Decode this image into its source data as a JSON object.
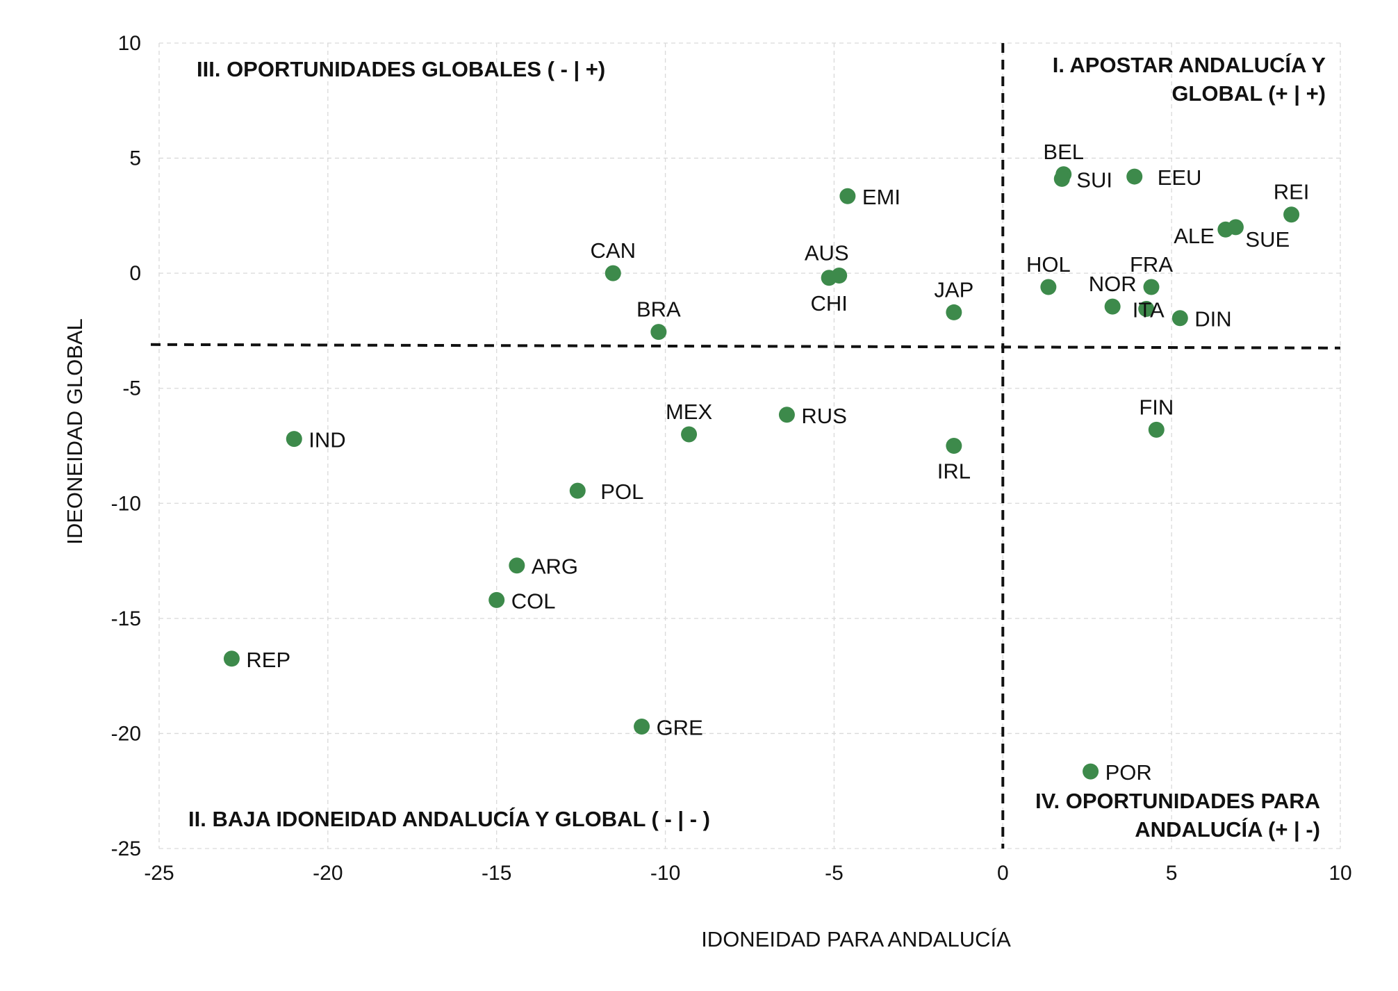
{
  "chart_data": {
    "type": "scatter",
    "xlabel": "IDONEIDAD PARA ANDALUCÍA",
    "ylabel": "IDEONEIDAD GLOBAL",
    "xlim": [
      -25,
      10
    ],
    "ylim": [
      -25,
      10
    ],
    "x_ticks": [
      "-25",
      "-20",
      "-15",
      "-10",
      "-5",
      "0",
      "5",
      "10"
    ],
    "y_ticks": [
      "10",
      "5",
      "0",
      "-5",
      "-10",
      "-15",
      "-20",
      "-25"
    ],
    "grid": true,
    "point_color": "#3d8a4b",
    "reference_lines": {
      "vertical_x": 0,
      "horizontal_y_left": -3.1,
      "horizontal_y_right": -3.25
    },
    "quadrants": {
      "q1_line1": "I. APOSTAR ANDALUCÍA Y",
      "q1_line2": "GLOBAL (+ | +)",
      "q2": "II. BAJA IDONEIDAD ANDALUCÍA Y GLOBAL ( - | - )",
      "q3": "III. OPORTUNIDADES GLOBALES ( - | +)",
      "q4_line1": "IV. OPORTUNIDADES PARA",
      "q4_line2": "ANDALUCÍA (+ | -)"
    },
    "points": [
      {
        "label": "BEL",
        "x": 1.8,
        "y": 4.3,
        "pos": "top"
      },
      {
        "label": "SUI",
        "x": 1.75,
        "y": 4.1,
        "pos": "right"
      },
      {
        "label": "EEU",
        "x": 3.9,
        "y": 4.2,
        "pos": "right-far"
      },
      {
        "label": "REI",
        "x": 8.55,
        "y": 2.55,
        "pos": "top"
      },
      {
        "label": "ALE",
        "x": 6.6,
        "y": 1.9,
        "pos": "left-low"
      },
      {
        "label": "SUE",
        "x": 6.9,
        "y": 2.0,
        "pos": "right-low"
      },
      {
        "label": "HOL",
        "x": 1.35,
        "y": -0.6,
        "pos": "top"
      },
      {
        "label": "FRA",
        "x": 4.4,
        "y": -0.6,
        "pos": "top"
      },
      {
        "label": "NOR",
        "x": 3.25,
        "y": -1.45,
        "pos": "top"
      },
      {
        "label": "ITA",
        "x": 4.25,
        "y": -1.55,
        "pos": "right-tight"
      },
      {
        "label": "DIN",
        "x": 5.25,
        "y": -1.95,
        "pos": "right"
      },
      {
        "label": "FIN",
        "x": 4.55,
        "y": -6.8,
        "pos": "top"
      },
      {
        "label": "POR",
        "x": 2.6,
        "y": -21.65,
        "pos": "right"
      },
      {
        "label": "EMI",
        "x": -4.6,
        "y": 3.35,
        "pos": "right"
      },
      {
        "label": "CAN",
        "x": -11.55,
        "y": 0.0,
        "pos": "top"
      },
      {
        "label": "AUS",
        "x": -4.85,
        "y": -0.1,
        "pos": "top-left"
      },
      {
        "label": "CHI",
        "x": -5.15,
        "y": -0.2,
        "pos": "bottom"
      },
      {
        "label": "JAP",
        "x": -1.45,
        "y": -1.7,
        "pos": "top"
      },
      {
        "label": "BRA",
        "x": -10.2,
        "y": -2.55,
        "pos": "top"
      },
      {
        "label": "MEX",
        "x": -9.3,
        "y": -7.0,
        "pos": "top"
      },
      {
        "label": "RUS",
        "x": -6.4,
        "y": -6.15,
        "pos": "right"
      },
      {
        "label": "IRL",
        "x": -1.45,
        "y": -7.5,
        "pos": "bottom"
      },
      {
        "label": "IND",
        "x": -21.0,
        "y": -7.2,
        "pos": "right"
      },
      {
        "label": "POL",
        "x": -12.6,
        "y": -9.45,
        "pos": "right-far"
      },
      {
        "label": "ARG",
        "x": -14.4,
        "y": -12.7,
        "pos": "right"
      },
      {
        "label": "COL",
        "x": -15.0,
        "y": -14.2,
        "pos": "right"
      },
      {
        "label": "REP",
        "x": -22.85,
        "y": -16.75,
        "pos": "right"
      },
      {
        "label": "GRE",
        "x": -10.7,
        "y": -19.7,
        "pos": "right"
      }
    ]
  }
}
